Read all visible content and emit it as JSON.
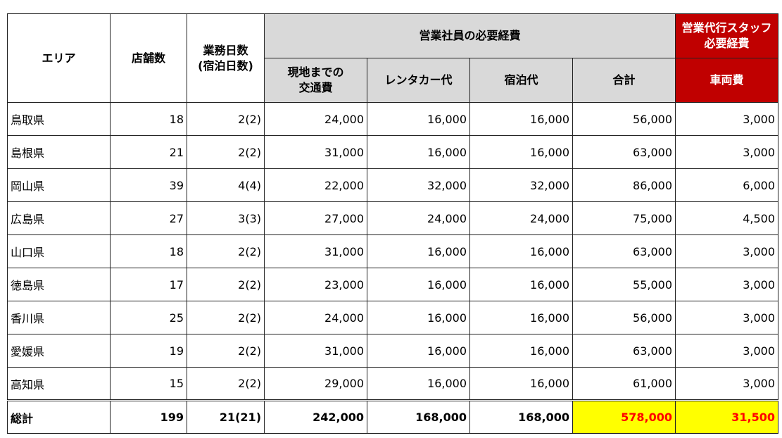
{
  "headers": {
    "area": "エリア",
    "stores": "店舗数",
    "days_line1": "業務日数",
    "days_line2": "(宿泊日数)",
    "sales_group": "営業社員の必要経費",
    "transport_line1": "現地までの",
    "transport_line2": "交通費",
    "rental": "レンタカー代",
    "lodging": "宿泊代",
    "subtotal": "合計",
    "agency_line1": "営業代行スタッフ",
    "agency_line2": "必要経費",
    "vehicle": "車両費"
  },
  "rows": [
    {
      "area": "鳥取県",
      "stores": "18",
      "days": "2(2)",
      "transport": "24,000",
      "rental": "16,000",
      "lodging": "16,000",
      "subtotal": "56,000",
      "vehicle": "3,000"
    },
    {
      "area": "島根県",
      "stores": "21",
      "days": "2(2)",
      "transport": "31,000",
      "rental": "16,000",
      "lodging": "16,000",
      "subtotal": "63,000",
      "vehicle": "3,000"
    },
    {
      "area": "岡山県",
      "stores": "39",
      "days": "4(4)",
      "transport": "22,000",
      "rental": "32,000",
      "lodging": "32,000",
      "subtotal": "86,000",
      "vehicle": "6,000"
    },
    {
      "area": "広島県",
      "stores": "27",
      "days": "3(3)",
      "transport": "27,000",
      "rental": "24,000",
      "lodging": "24,000",
      "subtotal": "75,000",
      "vehicle": "4,500"
    },
    {
      "area": "山口県",
      "stores": "18",
      "days": "2(2)",
      "transport": "31,000",
      "rental": "16,000",
      "lodging": "16,000",
      "subtotal": "63,000",
      "vehicle": "3,000"
    },
    {
      "area": "徳島県",
      "stores": "17",
      "days": "2(2)",
      "transport": "23,000",
      "rental": "16,000",
      "lodging": "16,000",
      "subtotal": "55,000",
      "vehicle": "3,000"
    },
    {
      "area": "香川県",
      "stores": "25",
      "days": "2(2)",
      "transport": "24,000",
      "rental": "16,000",
      "lodging": "16,000",
      "subtotal": "56,000",
      "vehicle": "3,000"
    },
    {
      "area": "愛媛県",
      "stores": "19",
      "days": "2(2)",
      "transport": "31,000",
      "rental": "16,000",
      "lodging": "16,000",
      "subtotal": "63,000",
      "vehicle": "3,000"
    },
    {
      "area": "高知県",
      "stores": "15",
      "days": "2(2)",
      "transport": "29,000",
      "rental": "16,000",
      "lodging": "16,000",
      "subtotal": "61,000",
      "vehicle": "3,000"
    }
  ],
  "total": {
    "area": "総計",
    "stores": "199",
    "days": "21(21)",
    "transport": "242,000",
    "rental": "168,000",
    "lodging": "168,000",
    "subtotal": "578,000",
    "vehicle": "31,500"
  },
  "colors": {
    "header_grey": "#d9d9d9",
    "header_red": "#c00000",
    "highlight_yellow": "#ffff00",
    "highlight_text_red": "#ff0000"
  }
}
